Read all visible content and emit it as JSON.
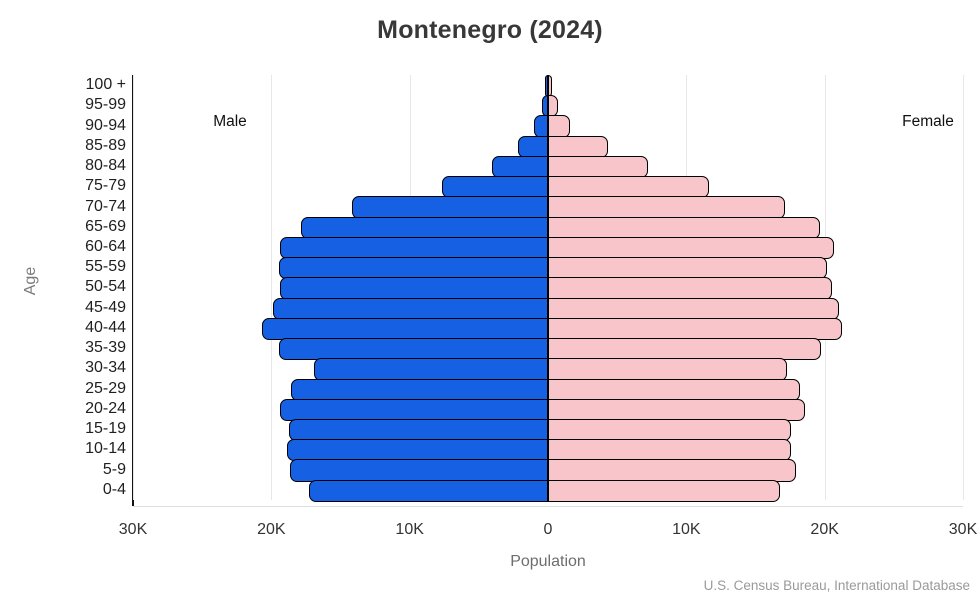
{
  "title": "Montenegro (2024)",
  "annotations": {
    "male_label": "Male",
    "female_label": "Female"
  },
  "axes": {
    "x_label": "Population",
    "y_label": "Age",
    "x_ticks": [
      "30K",
      "20K",
      "10K",
      "0",
      "10K",
      "20K",
      "30K"
    ]
  },
  "source": "U.S. Census Bureau, International Database",
  "colors": {
    "male_bar": "#1661e3",
    "female_bar": "#f8c5ca",
    "bar_border": "#000000",
    "gridline": "#e7e7e7",
    "axis_spine": "#141414",
    "title_text": "#383838"
  },
  "chart_data": {
    "type": "bar",
    "subtype": "population-pyramid",
    "orientation": "horizontal",
    "title": "Montenegro (2024)",
    "xlabel": "Population",
    "ylabel": "Age",
    "x_range_per_side": 30000,
    "x_tick_step": 10000,
    "grid": true,
    "legend_position": "in-plot annotations (Male left, Female right)",
    "categories_top_to_bottom": [
      "100 +",
      "95-99",
      "90-94",
      "85-89",
      "80-84",
      "75-79",
      "70-74",
      "65-69",
      "60-64",
      "55-59",
      "50-54",
      "45-49",
      "40-44",
      "35-39",
      "30-34",
      "25-29",
      "20-24",
      "15-19",
      "10-14",
      "5-9",
      "0-4"
    ],
    "series": [
      {
        "name": "Male",
        "side": "left",
        "color": "#1661e3",
        "values": [
          50,
          300,
          850,
          2000,
          3900,
          7500,
          14000,
          17700,
          19200,
          19300,
          19200,
          19700,
          20500,
          19300,
          16800,
          18400,
          19200,
          18600,
          18700,
          18500,
          17100
        ]
      },
      {
        "name": "Female",
        "side": "right",
        "color": "#f8c5ca",
        "values": [
          150,
          600,
          1450,
          4200,
          7100,
          11500,
          17000,
          19500,
          20500,
          20000,
          20400,
          20900,
          21100,
          19600,
          17100,
          18100,
          18400,
          17400,
          17400,
          17800,
          16600
        ]
      }
    ],
    "values_note": "people, estimated from bar lengths against 10K gridlines"
  }
}
